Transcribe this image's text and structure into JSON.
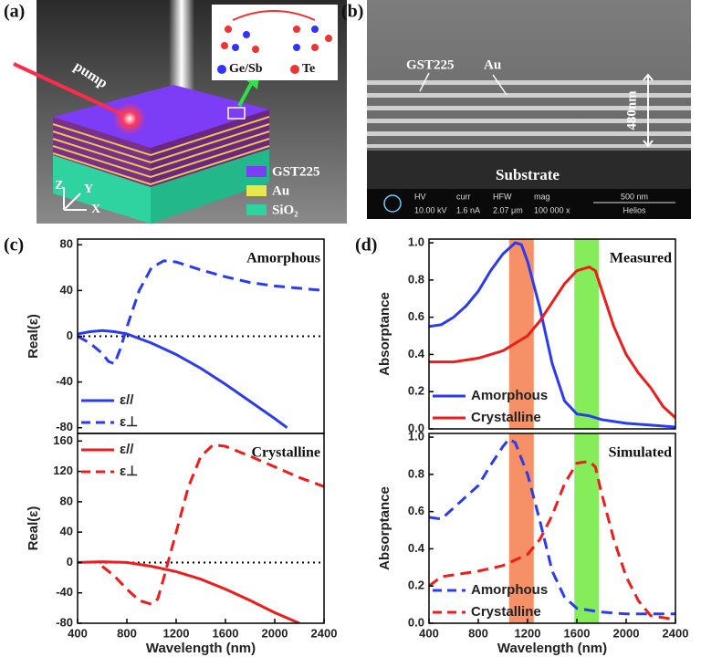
{
  "panels": {
    "a": {
      "label": "(a)",
      "pump": "pump",
      "inset_legend": [
        "Ge/Sb",
        "Te"
      ],
      "layers": [
        "GST225",
        "Au",
        "SiO₂"
      ],
      "axes": [
        "Z",
        "Y",
        "X"
      ]
    },
    "b": {
      "label": "(b)",
      "layer_labels": [
        "GST225",
        "Au"
      ],
      "thickness": "480nm",
      "substrate": "Substrate",
      "info_headers": [
        "HV",
        "curr",
        "HFW",
        "mag"
      ],
      "info_values": [
        "10.00 kV",
        "1.6 nA",
        "2.07 μm",
        "100 000 x"
      ],
      "scale": "500 nm",
      "brand": "Helios"
    }
  },
  "chart_data": [
    {
      "type": "line",
      "panel_label": "(c)",
      "annotation": "Amorphous",
      "ylabel": "Real(ε)",
      "xlim": [
        400,
        2400
      ],
      "ylim": [
        -85,
        85
      ],
      "yticks": [
        -80,
        -40,
        0,
        40,
        80
      ],
      "hline": 0,
      "legend": "lower left",
      "series": [
        {
          "name": "ε//",
          "color": "#2b3bef",
          "dash": false,
          "x": [
            400,
            500,
            600,
            700,
            800,
            1000,
            1200,
            1400,
            1600,
            1800,
            2000,
            2100
          ],
          "values": [
            2,
            4,
            5,
            4,
            2,
            -6,
            -16,
            -28,
            -42,
            -57,
            -72,
            -80
          ]
        },
        {
          "name": "ε⊥",
          "color": "#2b3bef",
          "dash": true,
          "x": [
            400,
            500,
            600,
            650,
            700,
            750,
            800,
            900,
            1000,
            1100,
            1200,
            1400,
            1600,
            1800,
            2000,
            2200,
            2400
          ],
          "values": [
            0,
            -6,
            -15,
            -22,
            -24,
            -10,
            8,
            40,
            60,
            66,
            65,
            58,
            52,
            47,
            44,
            42,
            40
          ]
        }
      ]
    },
    {
      "type": "line",
      "annotation": "Crystalline",
      "ylabel": "Real(ε)",
      "xlabel": "Wavelength (nm)",
      "xlim": [
        400,
        2400
      ],
      "xticks": [
        400,
        800,
        1200,
        1600,
        2000,
        2400
      ],
      "ylim": [
        -80,
        170
      ],
      "yticks": [
        -80,
        -40,
        0,
        40,
        80,
        120,
        160
      ],
      "hline": 0,
      "legend": "upper left",
      "series": [
        {
          "name": "ε//",
          "color": "#ee1c1c",
          "dash": false,
          "x": [
            400,
            600,
            800,
            1000,
            1200,
            1400,
            1600,
            1800,
            2000,
            2200
          ],
          "values": [
            0,
            1,
            0,
            -5,
            -12,
            -22,
            -35,
            -50,
            -66,
            -80
          ]
        },
        {
          "name": "ε⊥",
          "color": "#ee1c1c",
          "dash": true,
          "x": [
            600,
            700,
            800,
            900,
            1000,
            1050,
            1100,
            1200,
            1300,
            1400,
            1500,
            1600,
            1800,
            2000,
            2200,
            2400
          ],
          "values": [
            -5,
            -18,
            -35,
            -50,
            -55,
            -48,
            -20,
            40,
            100,
            140,
            155,
            153,
            140,
            126,
            112,
            100
          ]
        }
      ]
    },
    {
      "type": "line",
      "panel_label": "(d)",
      "annotation": "Measured",
      "ylabel": "Absorptance",
      "xlim": [
        400,
        2400
      ],
      "ylim": [
        0,
        1.02
      ],
      "yticks": [
        {
          "value": 0,
          "label": "0.0"
        },
        0.2,
        0.4,
        0.6,
        0.8,
        {
          "value": 1,
          "label": "1.0"
        }
      ],
      "legend": "lower left",
      "bands": [
        {
          "range": [
            1050,
            1250
          ],
          "color": "#f47c4c"
        },
        {
          "range": [
            1580,
            1780
          ],
          "color": "#6eea3c"
        }
      ],
      "series": [
        {
          "name": "Amorphous",
          "color": "#2b3bef",
          "dash": false,
          "x": [
            400,
            500,
            600,
            700,
            800,
            900,
            1000,
            1100,
            1150,
            1200,
            1300,
            1400,
            1500,
            1600,
            1700,
            1800,
            2000,
            2200,
            2400
          ],
          "values": [
            0.55,
            0.56,
            0.6,
            0.66,
            0.74,
            0.85,
            0.94,
            1.0,
            0.99,
            0.9,
            0.65,
            0.35,
            0.15,
            0.08,
            0.07,
            0.05,
            0.03,
            0.02,
            0.01
          ]
        },
        {
          "name": "Crystalline",
          "color": "#ee1c1c",
          "dash": false,
          "x": [
            400,
            600,
            800,
            1000,
            1200,
            1300,
            1400,
            1500,
            1600,
            1700,
            1750,
            1800,
            1900,
            2000,
            2100,
            2200,
            2300,
            2400
          ],
          "values": [
            0.36,
            0.36,
            0.38,
            0.42,
            0.5,
            0.58,
            0.68,
            0.78,
            0.85,
            0.87,
            0.85,
            0.75,
            0.55,
            0.4,
            0.3,
            0.22,
            0.12,
            0.06
          ]
        }
      ]
    },
    {
      "type": "line",
      "annotation": "Simulated",
      "ylabel": "Absorptance",
      "xlabel": "Wavelength (nm)",
      "xlim": [
        400,
        2400
      ],
      "xticks": [
        400,
        800,
        1200,
        1600,
        2000,
        2400
      ],
      "ylim": [
        0,
        1.02
      ],
      "yticks": [
        {
          "value": 0,
          "label": "0.0"
        },
        0.2,
        0.4,
        0.6,
        0.8,
        {
          "value": 1,
          "label": "1.0"
        }
      ],
      "legend": "lower left",
      "bands": [
        {
          "range": [
            1050,
            1250
          ],
          "color": "#f47c4c"
        },
        {
          "range": [
            1580,
            1780
          ],
          "color": "#6eea3c"
        }
      ],
      "series": [
        {
          "name": "Amorphous",
          "color": "#2b3bef",
          "dash": true,
          "x": [
            400,
            500,
            600,
            700,
            800,
            900,
            1000,
            1050,
            1100,
            1200,
            1300,
            1400,
            1500,
            1600,
            1800,
            2000,
            2200,
            2400
          ],
          "values": [
            0.57,
            0.56,
            0.62,
            0.68,
            0.74,
            0.85,
            0.95,
            0.99,
            0.97,
            0.8,
            0.55,
            0.28,
            0.14,
            0.08,
            0.06,
            0.05,
            0.05,
            0.05
          ]
        },
        {
          "name": "Crystalline",
          "color": "#ee1c1c",
          "dash": true,
          "x": [
            400,
            500,
            600,
            800,
            1000,
            1200,
            1300,
            1400,
            1500,
            1600,
            1700,
            1750,
            1800,
            1900,
            2000,
            2100,
            2200,
            2400
          ],
          "values": [
            0.2,
            0.25,
            0.26,
            0.28,
            0.31,
            0.37,
            0.45,
            0.58,
            0.75,
            0.86,
            0.87,
            0.84,
            0.7,
            0.45,
            0.25,
            0.12,
            0.04,
            0.02
          ]
        }
      ]
    }
  ]
}
